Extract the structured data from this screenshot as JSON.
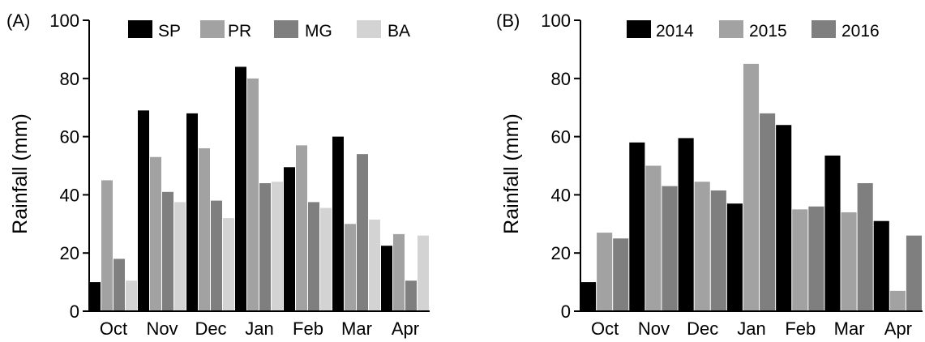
{
  "chart_data": [
    {
      "panel_label": "(A)",
      "type": "bar",
      "ylabel": "Rainfall (mm)",
      "ylim": [
        0,
        100
      ],
      "yticks": [
        "0",
        "20",
        "40",
        "60",
        "80",
        "100"
      ],
      "categories": [
        "Oct",
        "Nov",
        "Dec",
        "Jan",
        "Feb",
        "Mar",
        "Apr"
      ],
      "legend_position": "top",
      "series": [
        {
          "name": "SP",
          "color": "#000000",
          "values": [
            10,
            69,
            68,
            84,
            49.5,
            60,
            22.5
          ]
        },
        {
          "name": "PR",
          "color": "#a2a2a2",
          "values": [
            45,
            53,
            56,
            80,
            57,
            30,
            26.5
          ]
        },
        {
          "name": "MG",
          "color": "#7f7f7f",
          "values": [
            18,
            41,
            38,
            44,
            37.5,
            54,
            10.5
          ]
        },
        {
          "name": "BA",
          "color": "#d3d3d3",
          "values": [
            10.5,
            37.5,
            32,
            44.5,
            35.5,
            31.5,
            26
          ]
        }
      ]
    },
    {
      "panel_label": "(B)",
      "type": "bar",
      "ylabel": "Rainfall (mm)",
      "ylim": [
        0,
        100
      ],
      "yticks": [
        "0",
        "20",
        "40",
        "60",
        "80",
        "100"
      ],
      "categories": [
        "Oct",
        "Nov",
        "Dec",
        "Jan",
        "Feb",
        "Mar",
        "Apr"
      ],
      "legend_position": "top",
      "series": [
        {
          "name": "2014",
          "color": "#000000",
          "values": [
            10,
            58,
            59.5,
            37,
            64,
            53.5,
            31
          ]
        },
        {
          "name": "2015",
          "color": "#a2a2a2",
          "values": [
            27,
            50,
            44.5,
            85,
            35,
            34,
            7
          ]
        },
        {
          "name": "2016",
          "color": "#7f7f7f",
          "values": [
            25,
            43,
            41.5,
            68,
            36,
            44,
            26
          ]
        }
      ]
    }
  ]
}
